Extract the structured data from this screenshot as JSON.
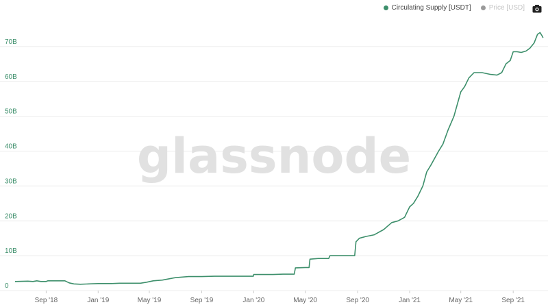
{
  "legend": {
    "items": [
      {
        "label": "Circulating Supply [USDT]",
        "color": "#3d8f6b",
        "text_color": "#444444",
        "active": true
      },
      {
        "label": "Price [USD]",
        "color": "#9a9a9a",
        "text_color": "#c4c4c4",
        "active": false
      }
    ]
  },
  "toolbar": {
    "camera_icon": "camera-icon"
  },
  "watermark": {
    "text": "glassnode"
  },
  "colors": {
    "line": "#3d8f6b",
    "grid": "#ececec",
    "tick_text": "#3d8f6b",
    "xtick_text": "#666666",
    "watermark": "#e1e1e1"
  },
  "chart_data": {
    "type": "line",
    "x_type": "date",
    "xlim": [
      "2018-06-20",
      "2021-11-12"
    ],
    "ylim": [
      0,
      80000000000
    ],
    "grid": true,
    "legend_position": "top-right",
    "y_ticks": [
      {
        "value": 0,
        "label": "0"
      },
      {
        "value": 10000000000,
        "label": "10B"
      },
      {
        "value": 20000000000,
        "label": "20B"
      },
      {
        "value": 30000000000,
        "label": "30B"
      },
      {
        "value": 40000000000,
        "label": "40B"
      },
      {
        "value": 50000000000,
        "label": "50B"
      },
      {
        "value": 60000000000,
        "label": "60B"
      },
      {
        "value": 70000000000,
        "label": "70B"
      }
    ],
    "x_ticks": [
      {
        "date": "2018-09-01",
        "label": "Sep '18"
      },
      {
        "date": "2019-01-01",
        "label": "Jan '19"
      },
      {
        "date": "2019-05-01",
        "label": "May '19"
      },
      {
        "date": "2019-09-01",
        "label": "Sep '19"
      },
      {
        "date": "2020-01-01",
        "label": "Jan '20"
      },
      {
        "date": "2020-05-01",
        "label": "May '20"
      },
      {
        "date": "2020-09-01",
        "label": "Sep '20"
      },
      {
        "date": "2021-01-01",
        "label": "Jan '21"
      },
      {
        "date": "2021-05-01",
        "label": "May '21"
      },
      {
        "date": "2021-09-01",
        "label": "Sep '21"
      }
    ],
    "series": [
      {
        "name": "Circulating Supply [USDT]",
        "color": "#3d8f6b",
        "points": [
          [
            "2018-06-20",
            2600000000.0
          ],
          [
            "2018-07-20",
            2700000000.0
          ],
          [
            "2018-08-01",
            2600000000.0
          ],
          [
            "2018-08-10",
            2800000000.0
          ],
          [
            "2018-08-20",
            2600000000.0
          ],
          [
            "2018-09-01",
            2600000000.0
          ],
          [
            "2018-09-05",
            2800000000.0
          ],
          [
            "2018-10-01",
            2800000000.0
          ],
          [
            "2018-10-15",
            2800000000.0
          ],
          [
            "2018-10-25",
            2200000000.0
          ],
          [
            "2018-11-05",
            1900000000.0
          ],
          [
            "2018-11-20",
            1800000000.0
          ],
          [
            "2018-12-10",
            1900000000.0
          ],
          [
            "2019-01-01",
            2000000000.0
          ],
          [
            "2019-02-01",
            2000000000.0
          ],
          [
            "2019-02-20",
            2100000000.0
          ],
          [
            "2019-03-15",
            2100000000.0
          ],
          [
            "2019-04-10",
            2100000000.0
          ],
          [
            "2019-04-25",
            2400000000.0
          ],
          [
            "2019-05-10",
            2800000000.0
          ],
          [
            "2019-06-01",
            3000000000.0
          ],
          [
            "2019-07-01",
            3700000000.0
          ],
          [
            "2019-08-01",
            4000000000.0
          ],
          [
            "2019-09-01",
            4000000000.0
          ],
          [
            "2019-10-01",
            4100000000.0
          ],
          [
            "2019-11-01",
            4100000000.0
          ],
          [
            "2019-12-01",
            4100000000.0
          ],
          [
            "2019-12-31",
            4100000000.0
          ],
          [
            "2020-01-01",
            4600000000.0
          ],
          [
            "2020-02-15",
            4600000000.0
          ],
          [
            "2020-03-10",
            4700000000.0
          ],
          [
            "2020-04-05",
            4700000000.0
          ],
          [
            "2020-04-08",
            6500000000.0
          ],
          [
            "2020-05-01",
            6600000000.0
          ],
          [
            "2020-05-10",
            6600000000.0
          ],
          [
            "2020-05-12",
            9000000000.0
          ],
          [
            "2020-06-01",
            9200000000.0
          ],
          [
            "2020-06-25",
            9200000000.0
          ],
          [
            "2020-06-28",
            10000000000.0
          ],
          [
            "2020-08-01",
            10000000000.0
          ],
          [
            "2020-08-25",
            10000000000.0
          ],
          [
            "2020-08-28",
            14000000000.0
          ],
          [
            "2020-09-05",
            15000000000.0
          ],
          [
            "2020-09-20",
            15500000000.0
          ],
          [
            "2020-10-10",
            16000000000.0
          ],
          [
            "2020-11-01",
            17500000000.0
          ],
          [
            "2020-11-20",
            19500000000.0
          ],
          [
            "2020-12-05",
            20000000000.0
          ],
          [
            "2020-12-20",
            21000000000.0
          ],
          [
            "2021-01-01",
            24000000000.0
          ],
          [
            "2021-01-10",
            25000000000.0
          ],
          [
            "2021-01-20",
            27000000000.0
          ],
          [
            "2021-02-01",
            30000000000.0
          ],
          [
            "2021-02-10",
            34000000000.0
          ],
          [
            "2021-02-20",
            36000000000.0
          ],
          [
            "2021-03-01",
            38000000000.0
          ],
          [
            "2021-03-10",
            40000000000.0
          ],
          [
            "2021-03-20",
            42000000000.0
          ],
          [
            "2021-04-01",
            46000000000.0
          ],
          [
            "2021-04-15",
            50000000000.0
          ],
          [
            "2021-05-01",
            57000000000.0
          ],
          [
            "2021-05-10",
            58500000000.0
          ],
          [
            "2021-05-20",
            61000000000.0
          ],
          [
            "2021-06-01",
            62500000000.0
          ],
          [
            "2021-06-20",
            62500000000.0
          ],
          [
            "2021-07-10",
            62000000000.0
          ],
          [
            "2021-07-25",
            61800000000.0
          ],
          [
            "2021-08-05",
            62500000000.0
          ],
          [
            "2021-08-15",
            65000000000.0
          ],
          [
            "2021-08-25",
            66000000000.0
          ],
          [
            "2021-09-01",
            68500000000.0
          ],
          [
            "2021-09-10",
            68500000000.0
          ],
          [
            "2021-09-20",
            68300000000.0
          ],
          [
            "2021-10-01",
            68700000000.0
          ],
          [
            "2021-10-10",
            69500000000.0
          ],
          [
            "2021-10-20",
            71000000000.0
          ],
          [
            "2021-10-28",
            73500000000.0
          ],
          [
            "2021-11-03",
            74000000000.0
          ],
          [
            "2021-11-08",
            73000000000.0
          ],
          [
            "2021-11-10",
            72500000000.0
          ]
        ]
      }
    ]
  }
}
